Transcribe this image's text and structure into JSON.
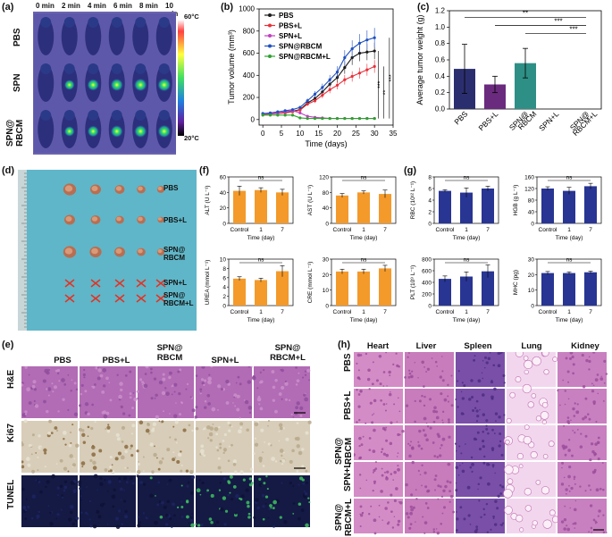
{
  "panel_labels": {
    "a": "(a)",
    "b": "(b)",
    "c": "(c)",
    "d": "(d)",
    "e": "(e)",
    "f": "(f)",
    "g": "(g)",
    "h": "(h)"
  },
  "panel_a": {
    "times": [
      "0 min",
      "2 min",
      "4 min",
      "6 min",
      "8 min",
      "10 min"
    ],
    "rows": [
      "PBS",
      "SPN",
      "SPN@\nRBCM"
    ],
    "scale_max": "60°C",
    "scale_min": "20°C"
  },
  "panel_d": {
    "labels": [
      "PBS",
      "PBS+L",
      "SPN@\nRBCM",
      "SPN+L",
      "SPN@\nRBCM+L"
    ]
  },
  "panel_e": {
    "columns": [
      "PBS",
      "PBS+L",
      "SPN@\nRBCM",
      "SPN+L",
      "SPN@\nRBCM+L"
    ],
    "rows": [
      "H&E",
      "Ki67",
      "TUNEL"
    ]
  },
  "panel_h": {
    "columns": [
      "Heart",
      "Liver",
      "Spleen",
      "Lung",
      "Kidney"
    ],
    "rows": [
      "PBS",
      "PBS+L",
      "SPN@\nRBCM",
      "SPN+L",
      "SPN@\nRBCM+L"
    ]
  },
  "chart_data": [
    {
      "id": "b",
      "type": "line",
      "title": "",
      "xlabel": "Time (days)",
      "ylabel": "Tumor volume (mm³)",
      "xlim": [
        -1,
        35
      ],
      "ylim": [
        -50,
        1000
      ],
      "xticks": [
        0,
        5,
        10,
        15,
        20,
        25,
        30,
        35
      ],
      "yticks": [
        0,
        200,
        400,
        600,
        800,
        1000
      ],
      "x": [
        0,
        2,
        4,
        6,
        8,
        10,
        12,
        14,
        16,
        18,
        20,
        22,
        24,
        26,
        28,
        30
      ],
      "series": [
        {
          "name": "PBS",
          "color": "#1a1a1a",
          "values": [
            50,
            55,
            60,
            65,
            75,
            90,
            150,
            190,
            250,
            320,
            380,
            470,
            560,
            600,
            610,
            620
          ]
        },
        {
          "name": "PBS+L",
          "color": "#e8303a",
          "values": [
            45,
            50,
            55,
            60,
            70,
            85,
            140,
            170,
            220,
            270,
            310,
            360,
            390,
            420,
            450,
            480
          ]
        },
        {
          "name": "SPN+L",
          "color": "#c040c0",
          "values": [
            50,
            55,
            60,
            70,
            80,
            60,
            30,
            20,
            15,
            10,
            10,
            10,
            10,
            10,
            10,
            10
          ]
        },
        {
          "name": "SPN@RBCM",
          "color": "#2050c0",
          "values": [
            55,
            60,
            70,
            80,
            90,
            110,
            170,
            230,
            290,
            360,
            430,
            560,
            640,
            690,
            720,
            740
          ]
        },
        {
          "name": "SPN@RBCM+L",
          "color": "#30a030",
          "values": [
            40,
            40,
            40,
            40,
            40,
            15,
            10,
            10,
            10,
            10,
            10,
            10,
            10,
            10,
            10,
            10
          ]
        }
      ],
      "significance": [
        "***",
        "**",
        "***"
      ]
    },
    {
      "id": "c",
      "type": "bar",
      "ylabel": "Average tumor weight (g)",
      "ylim": [
        0,
        1.2
      ],
      "yticks": [
        "0.0",
        "0.2",
        "0.4",
        "0.6",
        "0.8",
        "1.0",
        "1.2"
      ],
      "categories": [
        "PBS",
        "PBS+L",
        "SPN@\nRBCM",
        "SPN+L",
        "SPN@\nRBCM+L"
      ],
      "values": [
        0.49,
        0.3,
        0.56,
        0.0,
        0.0
      ],
      "errors": [
        0.3,
        0.1,
        0.18,
        0.0,
        0.0
      ],
      "colors": [
        "#2b2e6e",
        "#6a2a7e",
        "#2e8f86",
        "#2e8f86",
        "#2e8f86"
      ],
      "significance": [
        "**",
        "***",
        "***"
      ]
    },
    {
      "id": "f",
      "type": "bar",
      "color": "#f39a2b",
      "categories": [
        "Control",
        "1",
        "7"
      ],
      "xlabel": "Time (day)",
      "subplots": [
        {
          "ylabel": "ALT (U L⁻¹)",
          "ylim": [
            0,
            60
          ],
          "yticks": [
            0,
            20,
            40,
            60
          ],
          "values": [
            42,
            43,
            40
          ],
          "errors": [
            6,
            3,
            4
          ]
        },
        {
          "ylabel": "AST (U L⁻¹)",
          "ylim": [
            0,
            120
          ],
          "yticks": [
            0,
            40,
            80,
            120
          ],
          "values": [
            72,
            80,
            76
          ],
          "errors": [
            5,
            4,
            10
          ]
        },
        {
          "ylabel": "UREA (mmol L⁻¹)",
          "ylim": [
            0,
            10
          ],
          "yticks": [
            0,
            2,
            4,
            6,
            8,
            10
          ],
          "values": [
            5.8,
            5.5,
            7.4
          ],
          "errors": [
            0.4,
            0.4,
            1.2
          ]
        },
        {
          "ylabel": "CRE (mmol L⁻¹)",
          "ylim": [
            0,
            30
          ],
          "yticks": [
            0,
            10,
            20,
            30
          ],
          "values": [
            22,
            22,
            24
          ],
          "errors": [
            1.5,
            1.5,
            2
          ]
        }
      ],
      "significance": "ns"
    },
    {
      "id": "g",
      "type": "bar",
      "color": "#283593",
      "categories": [
        "Control",
        "1",
        "7"
      ],
      "xlabel": "Time (day)",
      "subplots": [
        {
          "ylabel": "RBC (10¹² L⁻¹)",
          "ylim": [
            0,
            8
          ],
          "yticks": [
            0,
            2,
            4,
            6,
            8
          ],
          "values": [
            5.6,
            5.3,
            6.0
          ],
          "errors": [
            0.2,
            0.8,
            0.4
          ]
        },
        {
          "ylabel": "HGB (g L⁻¹)",
          "ylim": [
            0,
            160
          ],
          "yticks": [
            0,
            40,
            80,
            120,
            160
          ],
          "values": [
            120,
            112,
            128
          ],
          "errors": [
            6,
            12,
            10
          ]
        },
        {
          "ylabel": "PLT (10⁹ L⁻¹)",
          "ylim": [
            0,
            800
          ],
          "yticks": [
            0,
            200,
            400,
            600,
            800
          ],
          "values": [
            460,
            500,
            590
          ],
          "errors": [
            50,
            80,
            110
          ]
        },
        {
          "ylabel": "MHC (pg)",
          "ylim": [
            0,
            30
          ],
          "yticks": [
            0,
            10,
            20,
            30
          ],
          "values": [
            21,
            21,
            21.5
          ],
          "errors": [
            1,
            0.8,
            0.8
          ]
        }
      ],
      "significance": "ns"
    }
  ]
}
